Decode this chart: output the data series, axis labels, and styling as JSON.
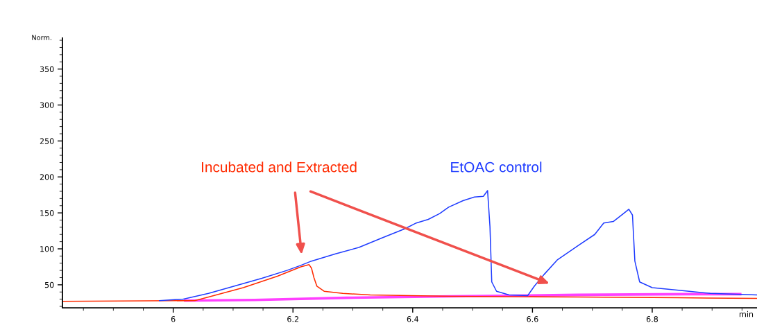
{
  "chart_data": {
    "type": "line",
    "ylabel": "Norm.",
    "xlabel": "min",
    "xlim": [
      5.815,
      6.975
    ],
    "xticks": [
      6,
      6.2,
      6.4,
      6.6,
      6.8
    ],
    "ylim": [
      18,
      393
    ],
    "yticks": [
      50,
      100,
      150,
      200,
      250,
      300,
      350
    ],
    "grid": false,
    "marker": "none",
    "line_style": "solid",
    "series": [
      {
        "name": "EtOAC control",
        "color": "#1f3cff",
        "x": [
          5.977,
          6.016,
          6.059,
          6.097,
          6.148,
          6.19,
          6.213,
          6.231,
          6.271,
          6.31,
          6.348,
          6.387,
          6.406,
          6.426,
          6.445,
          6.46,
          6.484,
          6.503,
          6.518,
          6.525,
          6.529,
          6.532,
          6.54,
          6.561,
          6.592,
          6.603,
          6.619,
          6.642,
          6.677,
          6.704,
          6.719,
          6.735,
          6.752,
          6.761,
          6.767,
          6.771,
          6.779,
          6.8,
          6.85,
          6.897,
          6.975
        ],
        "values": [
          28,
          30,
          38,
          47,
          59,
          70,
          77,
          83,
          93,
          102,
          115,
          128,
          136,
          141,
          149,
          158,
          167,
          172,
          173,
          181,
          131,
          54,
          41,
          36,
          35,
          48,
          64,
          85,
          105,
          120,
          136,
          138,
          149,
          155,
          147,
          83,
          54,
          46,
          42,
          38,
          36
        ]
      },
      {
        "name": "Incubated and Extracted",
        "color": "#ff2a00",
        "x": [
          5.815,
          6.036,
          6.059,
          6.117,
          6.174,
          6.213,
          6.227,
          6.231,
          6.235,
          6.24,
          6.252,
          6.283,
          6.329,
          6.464,
          6.676,
          6.842,
          6.975
        ],
        "values": [
          27,
          28,
          33,
          46,
          62,
          75,
          78,
          73,
          60,
          48,
          41,
          38,
          36,
          34,
          33,
          32,
          31
        ]
      },
      {
        "color": "#ff40ff",
        "x": [
          6.02,
          6.136,
          6.29,
          6.464,
          6.676,
          6.858,
          6.947
        ],
        "values": [
          28,
          29,
          32,
          34,
          36,
          37,
          37
        ]
      }
    ]
  }
}
